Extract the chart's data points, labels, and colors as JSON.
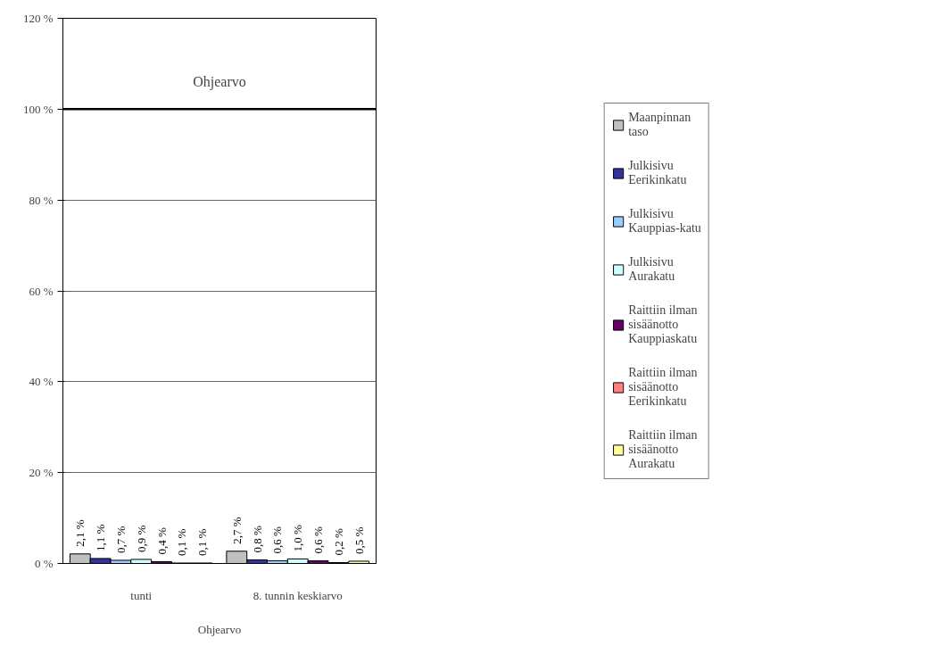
{
  "chart_data": {
    "type": "bar",
    "xlabel": "Ohjearvo",
    "categories": [
      "tunti",
      "8. tunnin keskiarvo"
    ],
    "series": [
      {
        "name": "Maanpinnan taso",
        "color": "#c0c0c0",
        "values": [
          2.1,
          2.7
        ],
        "value_labels": [
          "2,1 %",
          "2,7 %"
        ]
      },
      {
        "name": "Julkisivu Eerikinkatu",
        "color": "#333399",
        "values": [
          1.1,
          0.8
        ],
        "value_labels": [
          "1,1 %",
          "0,8 %"
        ]
      },
      {
        "name": "Julkisivu Kauppias-katu",
        "color": "#99ccff",
        "values": [
          0.7,
          0.6
        ],
        "value_labels": [
          "0,7 %",
          "0,6 %"
        ]
      },
      {
        "name": "Julkisivu Aurakatu",
        "color": "#ccffff",
        "values": [
          0.9,
          1.0
        ],
        "value_labels": [
          "0,9 %",
          "1,0 %"
        ]
      },
      {
        "name": "Raittiin ilman sisäänotto Kauppiaskatu",
        "color": "#660066",
        "values": [
          0.4,
          0.6
        ],
        "value_labels": [
          "0,4 %",
          "0,6 %"
        ]
      },
      {
        "name": "Raittiin ilman sisäänotto Eerikinkatu",
        "color": "#ff8080",
        "values": [
          0.1,
          0.2
        ],
        "value_labels": [
          "0,1 %",
          "0,2 %"
        ]
      },
      {
        "name": "Raittiin ilman sisäänotto Aurakatu",
        "color": "#ffff99",
        "values": [
          0.1,
          0.5
        ],
        "value_labels": [
          "0,1 %",
          "0,5 %"
        ]
      }
    ],
    "ylim": [
      0,
      120
    ],
    "yticks": [
      {
        "value": 0,
        "label": "0 %"
      },
      {
        "value": 20,
        "label": "20 %"
      },
      {
        "value": 40,
        "label": "40 %"
      },
      {
        "value": 60,
        "label": "60 %"
      },
      {
        "value": 80,
        "label": "80 %"
      },
      {
        "value": 100,
        "label": "100 %"
      },
      {
        "value": 120,
        "label": "120 %"
      }
    ],
    "ref_lines": [
      {
        "axis": "y",
        "value": 100,
        "label": "Ohjearvo",
        "color": "#000000"
      }
    ],
    "grid": "y",
    "legend": "right"
  }
}
